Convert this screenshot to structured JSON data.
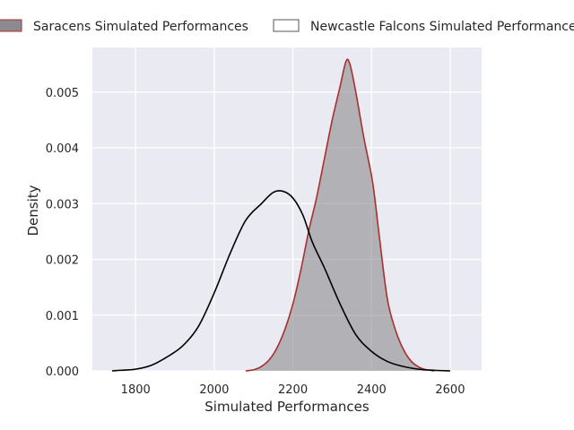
{
  "chart_data": {
    "type": "area",
    "xlabel": "Simulated Performances",
    "ylabel": "Density",
    "xlim": [
      1690,
      2680
    ],
    "ylim": [
      0,
      0.0058
    ],
    "grid": true,
    "legend_position": "top",
    "xticks": [
      {
        "value": 1800,
        "label": "1800"
      },
      {
        "value": 2000,
        "label": "2000"
      },
      {
        "value": 2200,
        "label": "2200"
      },
      {
        "value": 2400,
        "label": "2400"
      },
      {
        "value": 2600,
        "label": "2600"
      }
    ],
    "yticks": [
      {
        "value": 0,
        "label": "0.000"
      },
      {
        "value": 0.001,
        "label": "0.001"
      },
      {
        "value": 0.002,
        "label": "0.002"
      },
      {
        "value": 0.003,
        "label": "0.003"
      },
      {
        "value": 0.004,
        "label": "0.004"
      },
      {
        "value": 0.005,
        "label": "0.005"
      }
    ],
    "series": [
      {
        "name": "Saracens Simulated Performances",
        "fill": true,
        "fill_color": "#8c8a8e",
        "line_color": "#a8302e",
        "points": [
          [
            2080,
            0.0
          ],
          [
            2100,
            2e-05
          ],
          [
            2120,
            8e-05
          ],
          [
            2140,
            0.0002
          ],
          [
            2160,
            0.00042
          ],
          [
            2180,
            0.00075
          ],
          [
            2200,
            0.0012
          ],
          [
            2220,
            0.0018
          ],
          [
            2240,
            0.0025
          ],
          [
            2260,
            0.0031
          ],
          [
            2280,
            0.0038
          ],
          [
            2300,
            0.0045
          ],
          [
            2320,
            0.0051
          ],
          [
            2335,
            0.00555
          ],
          [
            2345,
            0.0055
          ],
          [
            2360,
            0.005
          ],
          [
            2380,
            0.0042
          ],
          [
            2400,
            0.0035
          ],
          [
            2410,
            0.003
          ],
          [
            2420,
            0.0024
          ],
          [
            2440,
            0.0013
          ],
          [
            2460,
            0.00075
          ],
          [
            2480,
            0.0004
          ],
          [
            2500,
            0.00018
          ],
          [
            2520,
            7e-05
          ],
          [
            2540,
            2e-05
          ],
          [
            2560,
            0.0
          ]
        ]
      },
      {
        "name": "Newcastle Falcons Simulated Performances",
        "fill": false,
        "line_color": "#000000",
        "points": [
          [
            1740,
            0.0
          ],
          [
            1760,
            1e-05
          ],
          [
            1800,
            3e-05
          ],
          [
            1840,
            0.0001
          ],
          [
            1880,
            0.00025
          ],
          [
            1920,
            0.00045
          ],
          [
            1960,
            0.0008
          ],
          [
            2000,
            0.0014
          ],
          [
            2040,
            0.0021
          ],
          [
            2080,
            0.0027
          ],
          [
            2120,
            0.003
          ],
          [
            2150,
            0.0032
          ],
          [
            2175,
            0.00322
          ],
          [
            2200,
            0.0031
          ],
          [
            2225,
            0.0028
          ],
          [
            2250,
            0.0023
          ],
          [
            2280,
            0.00185
          ],
          [
            2320,
            0.0012
          ],
          [
            2360,
            0.00065
          ],
          [
            2400,
            0.00035
          ],
          [
            2440,
            0.00017
          ],
          [
            2480,
            8e-05
          ],
          [
            2520,
            3e-05
          ],
          [
            2560,
            1e-05
          ],
          [
            2600,
            0.0
          ]
        ]
      }
    ]
  }
}
